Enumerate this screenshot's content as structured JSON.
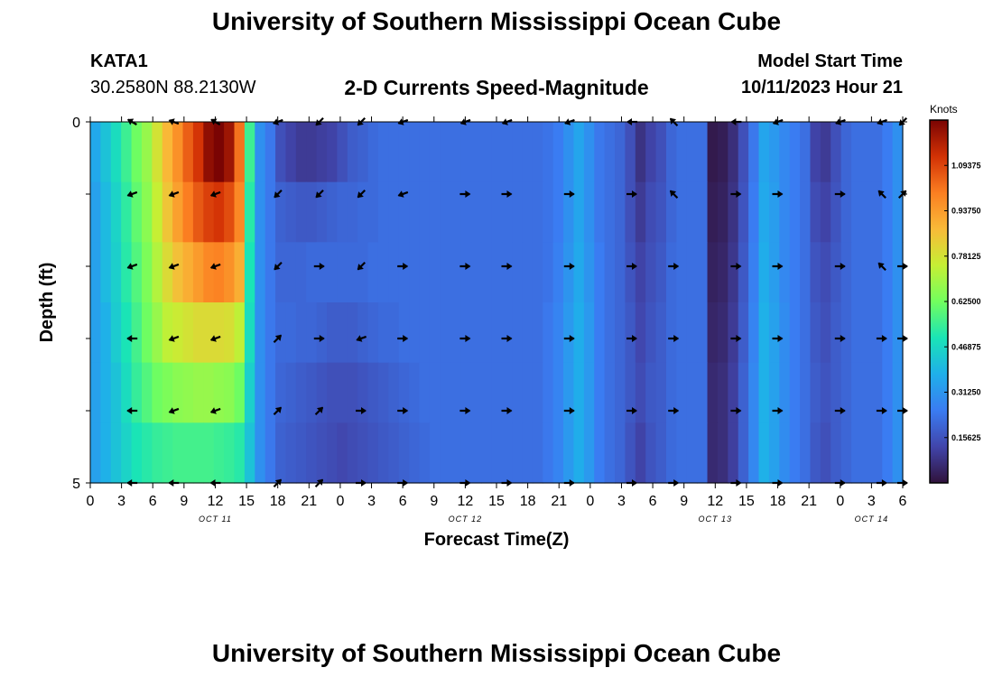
{
  "header": {
    "title": "University of Southern Mississippi Ocean Cube",
    "station": "KATA1",
    "coords": "30.2580N  88.2130W",
    "plot_title": "2-D Currents Speed-Magnitude",
    "model_label": "Model Start Time",
    "model_time": "10/11/2023 Hour 21"
  },
  "footer": {
    "title": "University of Southern Mississippi Ocean Cube"
  },
  "colors": {
    "arrow": "#000000",
    "colormap": [
      "#30123b",
      "#4145ab",
      "#3a7cf2",
      "#1fafea",
      "#1ae4b6",
      "#72fe5e",
      "#c6ef34",
      "#f9ba38",
      "#fb7e21",
      "#d23105",
      "#7a0403"
    ]
  },
  "chart_data": {
    "type": "heatmap",
    "title": "2-D Currents Speed-Magnitude",
    "xlabel": "Forecast Time(Z)",
    "ylabel": "Depth (ft)",
    "y_ticks": [
      "0",
      "5"
    ],
    "ylim": [
      0,
      5
    ],
    "x_step_hours": 3,
    "x_tick_labels": [
      "0",
      "3",
      "6",
      "9",
      "12",
      "15",
      "18",
      "21",
      "0",
      "3",
      "6",
      "9",
      "12",
      "15",
      "18",
      "21",
      "0",
      "3",
      "6",
      "9",
      "12",
      "15",
      "18",
      "21",
      "0",
      "3",
      "6"
    ],
    "date_labels": [
      {
        "label": "OCT 11",
        "at_hour": 12
      },
      {
        "label": "OCT 12",
        "at_hour": 36
      },
      {
        "label": "OCT 13",
        "at_hour": 60
      },
      {
        "label": "OCT 14",
        "at_hour": 75
      }
    ],
    "colorbar": {
      "title": "Knots",
      "vmin": 0.0,
      "vmax": 1.25,
      "ticks": [
        "0.15625",
        "0.31250",
        "0.46875",
        "0.62500",
        "0.78125",
        "0.93750",
        "1.09375"
      ]
    },
    "speed_columns_hours": [
      0,
      1,
      2,
      3,
      4,
      5,
      6,
      7,
      8,
      9,
      10,
      11,
      12,
      13,
      14,
      15,
      16,
      17,
      18,
      19,
      20,
      21,
      22,
      23,
      24,
      25,
      26,
      27,
      28,
      29,
      30,
      31,
      32,
      33,
      34,
      35,
      36,
      37,
      38,
      39,
      40,
      41,
      42,
      43,
      44,
      45,
      46,
      47,
      48,
      49,
      50,
      51,
      52,
      53,
      54,
      55,
      56,
      57,
      58,
      59,
      60,
      61,
      62,
      63,
      64,
      65,
      66,
      67,
      68,
      69,
      70,
      71,
      72,
      73,
      74,
      75,
      76,
      77,
      78
    ],
    "speed_knots": [
      [
        0.36,
        0.42,
        0.48,
        0.55,
        0.62,
        0.68,
        0.78,
        0.88,
        0.96,
        1.05,
        1.12,
        1.22,
        1.25,
        1.2,
        1.02,
        0.55,
        0.3,
        0.24,
        0.15,
        0.12,
        0.1,
        0.1,
        0.11,
        0.12,
        0.15,
        0.18,
        0.19,
        0.21,
        0.22,
        0.22,
        0.22,
        0.22,
        0.22,
        0.22,
        0.22,
        0.22,
        0.22,
        0.22,
        0.22,
        0.22,
        0.22,
        0.22,
        0.22,
        0.22,
        0.23,
        0.25,
        0.3,
        0.35,
        0.3,
        0.24,
        0.22,
        0.2,
        0.15,
        0.08,
        0.12,
        0.15,
        0.2,
        0.22,
        0.22,
        0.22,
        0.02,
        0.03,
        0.07,
        0.15,
        0.24,
        0.35,
        0.32,
        0.28,
        0.25,
        0.22,
        0.12,
        0.1,
        0.15,
        0.2,
        0.22,
        0.22,
        0.22,
        0.25,
        0.3
      ],
      [
        0.34,
        0.4,
        0.46,
        0.53,
        0.6,
        0.66,
        0.75,
        0.85,
        0.93,
        1.0,
        1.06,
        1.1,
        1.12,
        1.08,
        0.98,
        0.52,
        0.3,
        0.24,
        0.19,
        0.18,
        0.17,
        0.17,
        0.18,
        0.19,
        0.2,
        0.2,
        0.21,
        0.21,
        0.22,
        0.22,
        0.22,
        0.22,
        0.22,
        0.22,
        0.22,
        0.22,
        0.22,
        0.22,
        0.22,
        0.22,
        0.22,
        0.22,
        0.22,
        0.22,
        0.23,
        0.25,
        0.3,
        0.35,
        0.3,
        0.24,
        0.22,
        0.2,
        0.15,
        0.1,
        0.14,
        0.16,
        0.2,
        0.22,
        0.22,
        0.22,
        0.03,
        0.04,
        0.08,
        0.16,
        0.25,
        0.36,
        0.33,
        0.28,
        0.25,
        0.22,
        0.14,
        0.12,
        0.16,
        0.2,
        0.22,
        0.22,
        0.22,
        0.25,
        0.3
      ],
      [
        0.34,
        0.4,
        0.45,
        0.52,
        0.58,
        0.64,
        0.72,
        0.8,
        0.86,
        0.9,
        0.94,
        0.98,
        0.99,
        0.96,
        0.9,
        0.5,
        0.3,
        0.24,
        0.2,
        0.2,
        0.2,
        0.21,
        0.21,
        0.21,
        0.21,
        0.21,
        0.21,
        0.22,
        0.22,
        0.22,
        0.22,
        0.22,
        0.22,
        0.22,
        0.22,
        0.22,
        0.22,
        0.22,
        0.22,
        0.22,
        0.22,
        0.22,
        0.22,
        0.22,
        0.23,
        0.26,
        0.31,
        0.36,
        0.31,
        0.25,
        0.22,
        0.2,
        0.16,
        0.12,
        0.15,
        0.17,
        0.21,
        0.22,
        0.22,
        0.22,
        0.04,
        0.05,
        0.09,
        0.17,
        0.26,
        0.37,
        0.33,
        0.28,
        0.25,
        0.22,
        0.16,
        0.14,
        0.17,
        0.2,
        0.22,
        0.22,
        0.22,
        0.25,
        0.3
      ],
      [
        0.34,
        0.38,
        0.44,
        0.5,
        0.56,
        0.62,
        0.68,
        0.74,
        0.76,
        0.78,
        0.8,
        0.8,
        0.8,
        0.79,
        0.74,
        0.48,
        0.3,
        0.24,
        0.21,
        0.21,
        0.2,
        0.2,
        0.19,
        0.18,
        0.18,
        0.18,
        0.19,
        0.2,
        0.21,
        0.21,
        0.22,
        0.22,
        0.22,
        0.22,
        0.22,
        0.22,
        0.22,
        0.22,
        0.22,
        0.22,
        0.22,
        0.22,
        0.22,
        0.22,
        0.24,
        0.27,
        0.32,
        0.37,
        0.32,
        0.25,
        0.22,
        0.2,
        0.17,
        0.13,
        0.16,
        0.18,
        0.21,
        0.22,
        0.22,
        0.22,
        0.05,
        0.06,
        0.1,
        0.18,
        0.27,
        0.38,
        0.34,
        0.29,
        0.25,
        0.22,
        0.17,
        0.15,
        0.18,
        0.2,
        0.22,
        0.22,
        0.22,
        0.25,
        0.3
      ],
      [
        0.34,
        0.38,
        0.42,
        0.48,
        0.54,
        0.58,
        0.62,
        0.64,
        0.66,
        0.67,
        0.68,
        0.68,
        0.67,
        0.66,
        0.62,
        0.45,
        0.3,
        0.24,
        0.2,
        0.19,
        0.18,
        0.17,
        0.16,
        0.15,
        0.15,
        0.15,
        0.16,
        0.17,
        0.18,
        0.19,
        0.2,
        0.21,
        0.22,
        0.22,
        0.22,
        0.22,
        0.22,
        0.22,
        0.22,
        0.22,
        0.22,
        0.22,
        0.22,
        0.22,
        0.24,
        0.27,
        0.32,
        0.37,
        0.32,
        0.25,
        0.22,
        0.2,
        0.17,
        0.14,
        0.17,
        0.18,
        0.21,
        0.22,
        0.22,
        0.22,
        0.06,
        0.07,
        0.11,
        0.19,
        0.28,
        0.38,
        0.34,
        0.29,
        0.25,
        0.22,
        0.18,
        0.16,
        0.18,
        0.2,
        0.22,
        0.22,
        0.22,
        0.25,
        0.3
      ],
      [
        0.34,
        0.38,
        0.42,
        0.46,
        0.5,
        0.52,
        0.54,
        0.55,
        0.56,
        0.56,
        0.56,
        0.56,
        0.55,
        0.54,
        0.52,
        0.42,
        0.3,
        0.24,
        0.19,
        0.18,
        0.17,
        0.16,
        0.15,
        0.14,
        0.13,
        0.14,
        0.15,
        0.16,
        0.17,
        0.18,
        0.19,
        0.2,
        0.21,
        0.22,
        0.22,
        0.22,
        0.22,
        0.22,
        0.22,
        0.22,
        0.22,
        0.22,
        0.22,
        0.22,
        0.24,
        0.27,
        0.32,
        0.37,
        0.32,
        0.25,
        0.22,
        0.2,
        0.16,
        0.12,
        0.16,
        0.18,
        0.21,
        0.22,
        0.22,
        0.22,
        0.06,
        0.07,
        0.11,
        0.19,
        0.28,
        0.38,
        0.34,
        0.29,
        0.25,
        0.22,
        0.17,
        0.15,
        0.18,
        0.2,
        0.22,
        0.22,
        0.22,
        0.25,
        0.3
      ]
    ],
    "arrows": {
      "hours": [
        4,
        8,
        12,
        18,
        22,
        26,
        30,
        36,
        40,
        46,
        52,
        56,
        62,
        66,
        72,
        76,
        78
      ],
      "depth_rows": [
        0,
        1,
        2,
        3,
        4,
        5
      ],
      "direction_deg": [
        [
          150,
          160,
          150,
          200,
          225,
          225,
          200,
          200,
          200,
          200,
          180,
          135,
          180,
          200,
          200,
          200,
          225
        ],
        [
          200,
          200,
          200,
          225,
          225,
          225,
          200,
          0,
          0,
          0,
          0,
          135,
          0,
          0,
          0,
          135,
          45
        ],
        [
          200,
          200,
          200,
          225,
          0,
          225,
          0,
          0,
          0,
          0,
          0,
          0,
          0,
          0,
          0,
          135,
          0
        ],
        [
          180,
          200,
          200,
          45,
          0,
          200,
          0,
          0,
          0,
          0,
          0,
          0,
          0,
          0,
          0,
          0,
          0
        ],
        [
          180,
          200,
          200,
          45,
          45,
          0,
          0,
          0,
          0,
          0,
          0,
          0,
          0,
          0,
          0,
          0,
          0
        ],
        [
          180,
          180,
          180,
          45,
          45,
          0,
          0,
          0,
          0,
          0,
          0,
          0,
          0,
          0,
          0,
          0,
          0
        ]
      ]
    }
  }
}
